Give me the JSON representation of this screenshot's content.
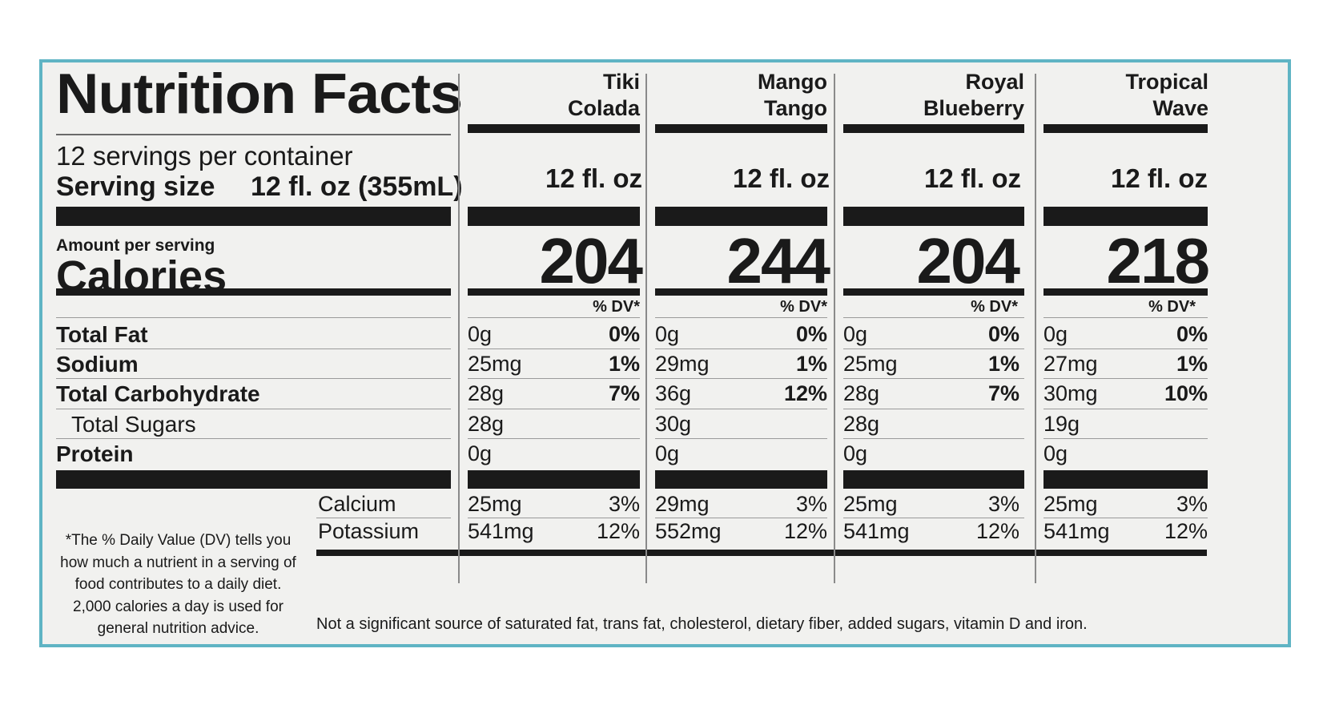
{
  "label": {
    "title": "Nutrition Facts",
    "servings_per_container": "12 servings per container",
    "serving_size_label": "Serving size",
    "serving_size_value": "12 fl. oz (355mL)",
    "amount_per_serving": "Amount per serving",
    "calories_label": "Calories",
    "dv_header": "% DV*",
    "nutrients": [
      "Total Fat",
      "Sodium",
      "Total Carbohydrate",
      "Total Sugars",
      "Protein"
    ],
    "minerals": [
      "Calcium",
      "Potassium"
    ],
    "footnote": "*The % Daily Value (DV) tells you how much a nutrient in a serving of food contributes to a daily diet. 2,000 calories a day is used for general  nutrition advice.",
    "bottom_note": "Not a significant source of saturated fat, trans fat, cholesterol, dietary fiber, added sugars, vitamin D and iron."
  },
  "flavors": [
    {
      "name_line1": "Tiki",
      "name_line2": "Colada",
      "serving": "12 fl. oz",
      "calories": "204",
      "total_fat": "0g",
      "total_fat_dv": "0%",
      "sodium": "25mg",
      "sodium_dv": "1%",
      "carb": "28g",
      "carb_dv": "7%",
      "sugars": "28g",
      "protein": "0g",
      "calcium": "25mg",
      "calcium_dv": "3%",
      "potassium": "541mg",
      "potassium_dv": "12%"
    },
    {
      "name_line1": "Mango",
      "name_line2": "Tango",
      "serving": "12 fl. oz",
      "calories": "244",
      "total_fat": "0g",
      "total_fat_dv": "0%",
      "sodium": "29mg",
      "sodium_dv": "1%",
      "carb": "36g",
      "carb_dv": "12%",
      "sugars": "30g",
      "protein": "0g",
      "calcium": "29mg",
      "calcium_dv": "3%",
      "potassium": "552mg",
      "potassium_dv": "12%"
    },
    {
      "name_line1": "Royal",
      "name_line2": "Blueberry",
      "serving": "12 fl. oz",
      "calories": "204",
      "total_fat": "0g",
      "total_fat_dv": "0%",
      "sodium": "25mg",
      "sodium_dv": "1%",
      "carb": "28g",
      "carb_dv": "7%",
      "sugars": "28g",
      "protein": "0g",
      "calcium": "25mg",
      "calcium_dv": "3%",
      "potassium": "541mg",
      "potassium_dv": "12%"
    },
    {
      "name_line1": "Tropical",
      "name_line2": "Wave",
      "serving": "12 fl. oz",
      "calories": "218",
      "total_fat": "0g",
      "total_fat_dv": "0%",
      "sodium": "27mg",
      "sodium_dv": "1%",
      "carb": "30mg",
      "carb_dv": "10%",
      "sugars": "19g",
      "protein": "0g",
      "calcium": "25mg",
      "calcium_dv": "3%",
      "potassium": "541mg",
      "potassium_dv": "12%"
    }
  ],
  "colors": {
    "border": "#5fb4c4",
    "background": "#f1f1ef",
    "ink": "#1a1a1a"
  }
}
